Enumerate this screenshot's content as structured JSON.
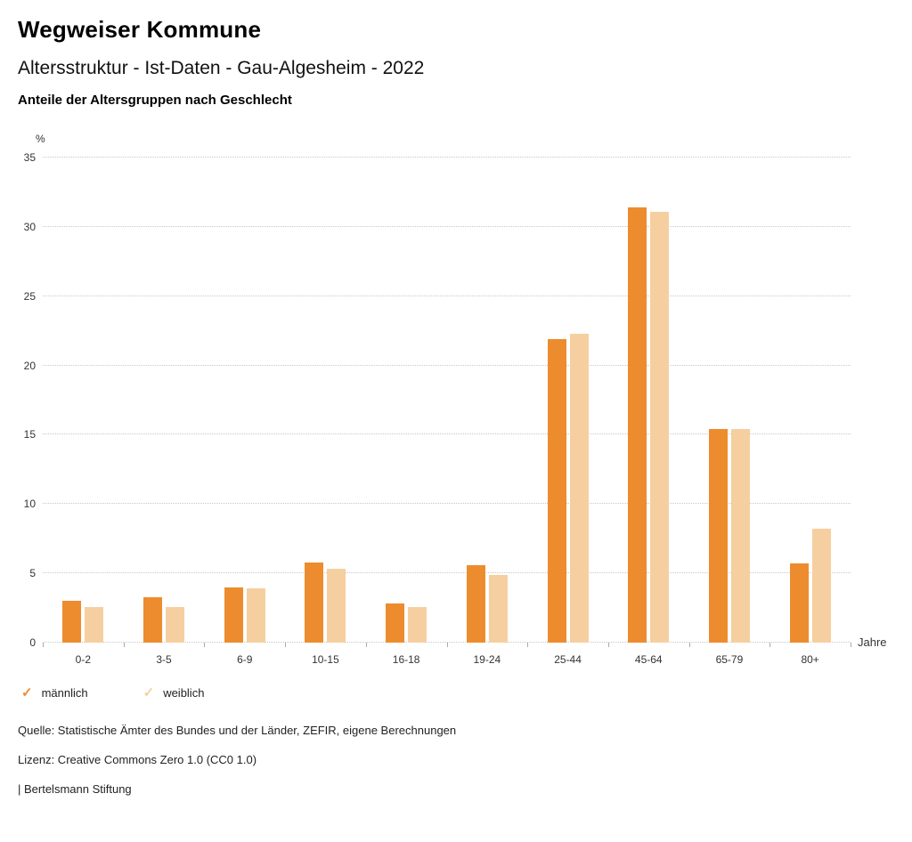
{
  "header": {
    "title": "Wegweiser Kommune",
    "subtitle": "Altersstruktur - Ist-Daten - Gau-Algesheim - 2022",
    "chart_title": "Anteile der Altersgruppen nach Geschlecht"
  },
  "chart_data": {
    "type": "bar",
    "title": "Anteile der Altersgruppen nach Geschlecht",
    "categories": [
      "0-2",
      "3-5",
      "6-9",
      "10-15",
      "16-18",
      "19-24",
      "25-44",
      "45-64",
      "65-79",
      "80+"
    ],
    "series": [
      {
        "name": "männlich",
        "color": "#ED8C2E",
        "values": [
          3.0,
          3.3,
          4.0,
          5.8,
          2.8,
          5.6,
          21.9,
          31.4,
          15.4,
          5.7
        ]
      },
      {
        "name": "weiblich",
        "color": "#F6CFA0",
        "values": [
          2.6,
          2.6,
          3.9,
          5.3,
          2.6,
          4.9,
          22.3,
          31.1,
          15.4,
          8.2
        ]
      }
    ],
    "ylabel": "%",
    "xlabel": "Jahre",
    "ylim": [
      0,
      35
    ],
    "yticks": [
      0,
      5,
      10,
      15,
      20,
      25,
      30,
      35
    ],
    "grid": true,
    "legend_position": "bottom-left"
  },
  "legend": {
    "items": [
      {
        "label": "männlich",
        "color": "#ED8C2E",
        "icon": "check-icon"
      },
      {
        "label": "weiblich",
        "color": "#F6CFA0",
        "icon": "check-icon"
      }
    ],
    "check_glyph": "✓"
  },
  "footer": {
    "source": "Quelle: Statistische Ämter des Bundes und der Länder, ZEFIR, eigene Berechnungen",
    "license": "Lizenz: Creative Commons Zero 1.0 (CC0 1.0)",
    "attribution": "| Bertelsmann Stiftung"
  }
}
